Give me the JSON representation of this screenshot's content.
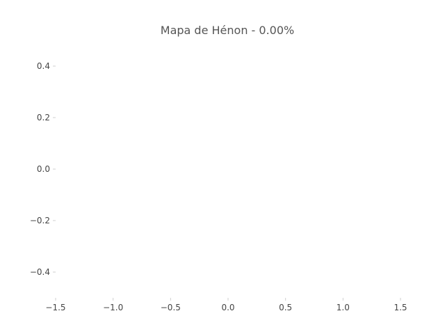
{
  "chart_data": {
    "type": "scatter",
    "title": "Mapa de Hénon - 0.00%",
    "xlabel": "",
    "ylabel": "",
    "xlim": [
      -1.5,
      1.5
    ],
    "ylim": [
      -0.5,
      0.5
    ],
    "x_ticks": [
      -1.5,
      -1.0,
      -0.5,
      0.0,
      0.5,
      1.0,
      1.5
    ],
    "x_tick_labels": [
      "−1.5",
      "−1.0",
      "−0.5",
      "0.0",
      "0.5",
      "1.0",
      "1.5"
    ],
    "y_ticks": [
      0.4,
      0.2,
      0.0,
      -0.2,
      -0.4
    ],
    "y_tick_labels": [
      "0.4",
      "0.2",
      "0.0",
      "−0.2",
      "−0.4"
    ],
    "grid": false,
    "series": [
      {
        "x": [],
        "y": []
      }
    ]
  }
}
